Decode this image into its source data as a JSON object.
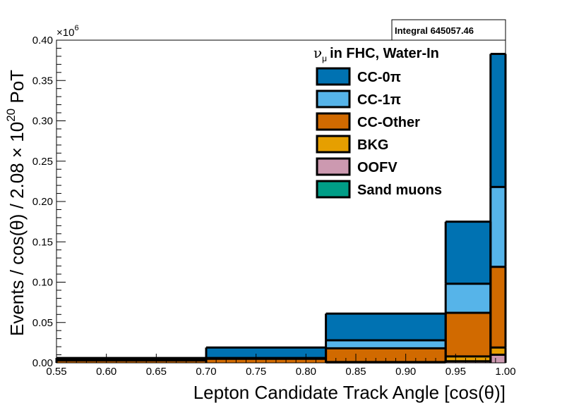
{
  "chart_data": {
    "type": "bar",
    "subtype": "stacked-histogram",
    "xlabel": "Lepton Candidate Track Angle [cos(θ)]",
    "ylabel": "Events / cos(θ) / 2.08 × 10²⁰ PoT",
    "ylabel_parts": {
      "pre": "Events / cos(θ) / 2.08 × 10",
      "sup": "20",
      "post": " PoT"
    },
    "y_multiplier": "×10⁶",
    "y_multiplier_parts": {
      "base": "×10",
      "sup": "6"
    },
    "xlim": [
      0.55,
      1.0
    ],
    "ylim": [
      0,
      0.4
    ],
    "x_ticks": [
      "0.55",
      "0.60",
      "0.65",
      "0.70",
      "0.75",
      "0.80",
      "0.85",
      "0.90",
      "0.95",
      "1.00"
    ],
    "y_ticks": [
      "0.00",
      "0.05",
      "0.10",
      "0.15",
      "0.20",
      "0.25",
      "0.30",
      "0.35",
      "0.40"
    ],
    "bin_edges": [
      0.55,
      0.7,
      0.82,
      0.94,
      0.985,
      1.0
    ],
    "series": [
      {
        "name": "Sand muons",
        "color": "#009e87",
        "values": [
          0.0,
          0.0,
          0.0,
          0.0,
          0.0
        ]
      },
      {
        "name": "OOFV",
        "color": "#cc99b0",
        "values": [
          0.0,
          0.0,
          0.0005,
          0.002,
          0.01
        ]
      },
      {
        "name": "BKG",
        "color": "#e69f00",
        "values": [
          0.0,
          0.0,
          0.0005,
          0.006,
          0.009
        ]
      },
      {
        "name": "CC-Other",
        "color": "#d16a00",
        "values": [
          0.003,
          0.005,
          0.017,
          0.054,
          0.1
        ]
      },
      {
        "name": "CC-1π",
        "color": "#56b4e9",
        "values": [
          0.0005,
          0.001,
          0.01,
          0.036,
          0.099
        ]
      },
      {
        "name": "CC-0π",
        "color": "#0072b2",
        "values": [
          0.0025,
          0.013,
          0.033,
          0.077,
          0.165
        ]
      }
    ],
    "legend": {
      "header": "in FHC, Water-In",
      "header_symbol": "ν",
      "header_symbol_sub": "μ",
      "placement": "top-right",
      "order": [
        "CC-0π",
        "CC-1π",
        "CC-Other",
        "BKG",
        "OOFV",
        "Sand muons"
      ]
    },
    "stats_box": "Integral 645057.46",
    "grid": false
  }
}
